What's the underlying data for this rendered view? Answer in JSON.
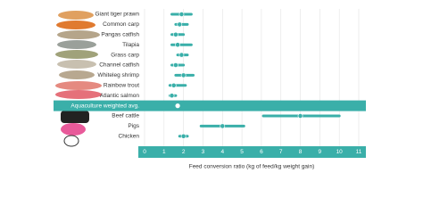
{
  "chart_data": {
    "type": "dot-range",
    "x_label": "Feed conversion ratio (kg of feed/kg weight gain)",
    "categories": [
      "Giant tiger prawn",
      "Common carp",
      "Pangas catfish",
      "Tilapia",
      "Grass carp",
      "Channel catfish",
      "Whiteleg shrimp",
      "Rainbow trout",
      "Atlantic salmon",
      "Aquaculture weighted avg.",
      "Beef cattle",
      "Pigs",
      "Chicken"
    ],
    "values": [
      1.9,
      1.8,
      1.6,
      1.7,
      1.9,
      1.6,
      2.0,
      1.5,
      1.4,
      1.7,
      8.0,
      4.0,
      2.0
    ],
    "low": [
      1.4,
      1.6,
      1.4,
      1.4,
      1.7,
      1.4,
      1.6,
      1.3,
      1.3,
      null,
      6.1,
      2.9,
      1.8
    ],
    "high": [
      2.4,
      2.2,
      2.0,
      2.4,
      2.2,
      2.0,
      2.5,
      2.1,
      1.6,
      null,
      10.0,
      5.1,
      2.2
    ],
    "highlight": "Aquaculture weighted avg.",
    "color": "#3aafa9",
    "xlim": [
      0,
      11
    ],
    "xticks": [
      0,
      1,
      2,
      3,
      4,
      5,
      6,
      7,
      8,
      9,
      10,
      11
    ],
    "grid": true
  }
}
